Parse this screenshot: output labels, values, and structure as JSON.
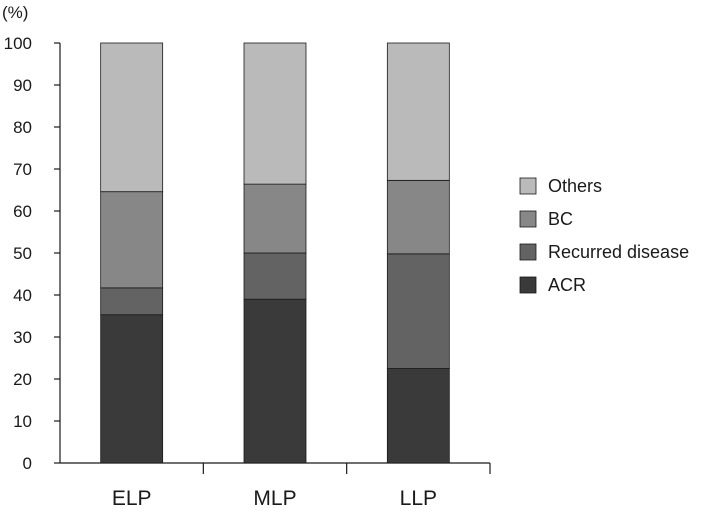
{
  "chart_data": {
    "type": "bar",
    "stacked": true,
    "categories": [
      "ELP",
      "MLP",
      "LLP"
    ],
    "series": [
      {
        "name": "ACR",
        "color": "#3a3a3a",
        "values": [
          35.3,
          39.0,
          22.5
        ]
      },
      {
        "name": "Recurred disease",
        "color": "#636363",
        "values": [
          6.4,
          11.0,
          27.3
        ]
      },
      {
        "name": "BC",
        "color": "#878787",
        "values": [
          22.9,
          16.4,
          17.5
        ]
      },
      {
        "name": "Others",
        "color": "#bababa",
        "values": [
          35.4,
          33.6,
          32.7
        ]
      }
    ],
    "legend_order": [
      "Others",
      "BC",
      "Recurred disease",
      "ACR"
    ],
    "legend_position": "right",
    "yunit": "(%)",
    "ylim": [
      0,
      100
    ],
    "yticks": [
      "0",
      "10",
      "20",
      "30",
      "40",
      "50",
      "60",
      "70",
      "80",
      "90",
      "100"
    ],
    "grid": false
  }
}
